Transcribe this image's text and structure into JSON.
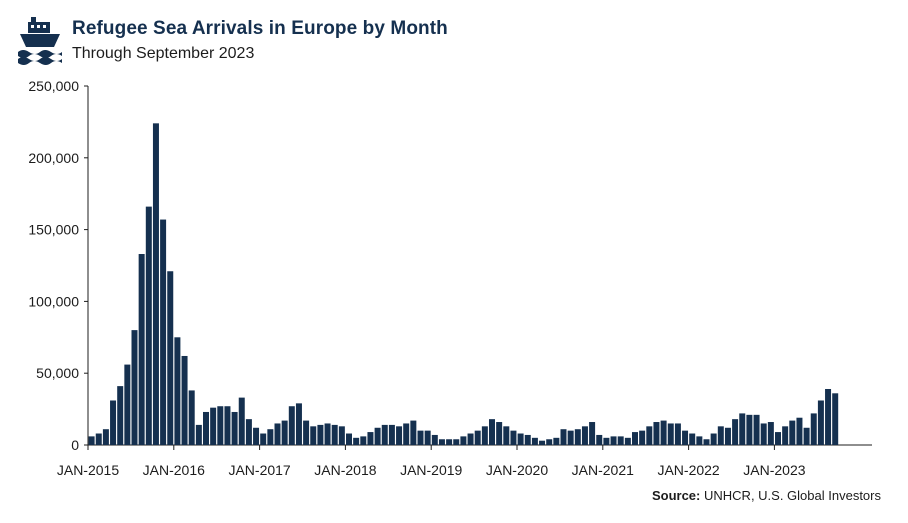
{
  "header": {
    "title": "Refugee Sea Arrivals in Europe by Month",
    "subtitle": "Through September 2023",
    "logo_icon": "ship-icon"
  },
  "footer": {
    "source_label": "Source:",
    "source_text": "UNHCR, U.S. Global Investors"
  },
  "colors": {
    "bar": "#15304f",
    "axis": "#1c1c1c",
    "title": "#15304f"
  },
  "chart_data": {
    "type": "bar",
    "title": "Refugee Sea Arrivals in Europe by Month",
    "subtitle": "Through September 2023",
    "xlabel": "",
    "ylabel": "",
    "ylim": [
      0,
      250000
    ],
    "yticks": [
      0,
      50000,
      100000,
      150000,
      200000,
      250000
    ],
    "ytick_labels": [
      "0",
      "50,000",
      "100,000",
      "150,000",
      "200,000",
      "250,000"
    ],
    "xtick_labels": [
      "JAN-2015",
      "JAN-2016",
      "JAN-2017",
      "JAN-2018",
      "JAN-2019",
      "JAN-2020",
      "JAN-2021",
      "JAN-2022",
      "JAN-2023"
    ],
    "start": "JAN-2015",
    "end": "SEP-2023",
    "grid": false,
    "legend": "none",
    "series": [
      {
        "values": [
          6000,
          8000,
          11000,
          31000,
          41000,
          56000,
          80000,
          133000,
          166000,
          224000,
          157000,
          121000,
          75000,
          62000,
          38000,
          14000,
          23000,
          26000,
          27000,
          27000,
          23000,
          33000,
          18000,
          12000,
          8000,
          11000,
          15000,
          17000,
          27000,
          29000,
          17000,
          13000,
          14000,
          15000,
          14000,
          13000,
          8000,
          5000,
          6000,
          9000,
          12000,
          14000,
          14000,
          13000,
          15000,
          17000,
          10000,
          10000,
          7000,
          4000,
          4000,
          4000,
          6000,
          8000,
          10000,
          13000,
          18000,
          16000,
          13000,
          10000,
          8000,
          7000,
          5000,
          3000,
          4000,
          5000,
          11000,
          10000,
          11000,
          13000,
          16000,
          7000,
          5000,
          6000,
          6000,
          5000,
          9000,
          10000,
          13000,
          16000,
          17000,
          15000,
          15000,
          10000,
          8000,
          6000,
          4000,
          8000,
          13000,
          12000,
          18000,
          22000,
          21000,
          21000,
          15000,
          16000,
          9000,
          13000,
          17000,
          19000,
          12000,
          22000,
          31000,
          39000,
          36000
        ]
      }
    ]
  }
}
